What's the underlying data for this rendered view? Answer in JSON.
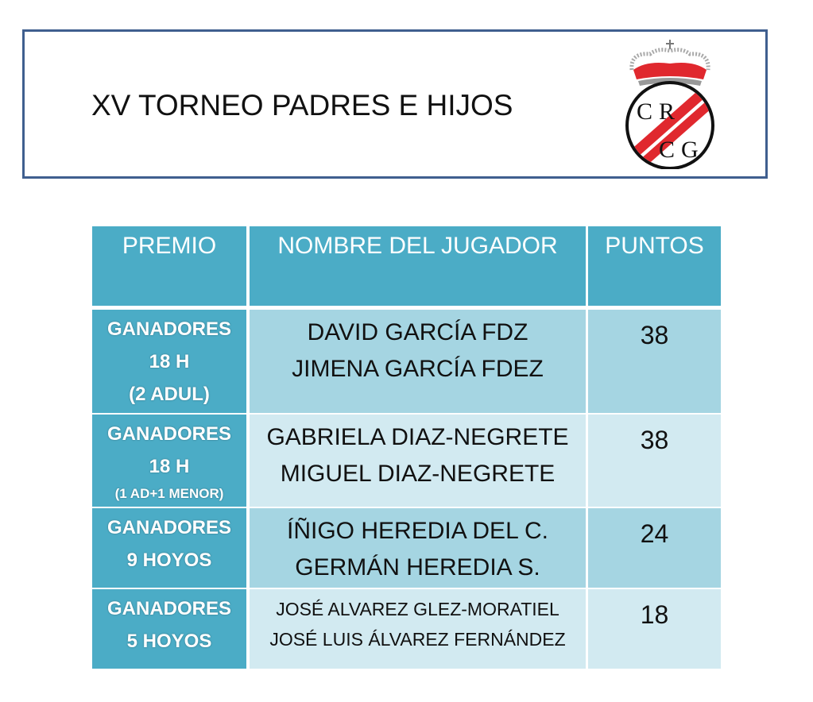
{
  "header": {
    "title": "XV TORNEO PADRES E HIJOS",
    "logo_text": "RCG"
  },
  "colors": {
    "header_cell": "#4bacc6",
    "row_dark": "#a5d5e2",
    "row_light": "#d2eaf1",
    "frame": "#3f5f8f"
  },
  "table": {
    "columns": [
      "PREMIO",
      "NOMBRE DEL JUGADOR",
      "PUNTOS"
    ],
    "rows": [
      {
        "premio": [
          "GANADORES",
          "18 H",
          "(2 ADUL)"
        ],
        "nombres": [
          "DAVID GARCÍA FDZ",
          "JIMENA GARCÍA FDEZ"
        ],
        "puntos": "38"
      },
      {
        "premio": [
          "GANADORES",
          "18 H",
          "(1 AD+1 MENOR)"
        ],
        "nombres": [
          "GABRIELA DIAZ-NEGRETE",
          "MIGUEL DIAZ-NEGRETE"
        ],
        "puntos": "38"
      },
      {
        "premio": [
          "GANADORES",
          "9 HOYOS"
        ],
        "nombres": [
          "ÍÑIGO HEREDIA DEL C.",
          "GERMÁN HEREDIA S."
        ],
        "puntos": "24"
      },
      {
        "premio": [
          "GANADORES",
          "5 HOYOS"
        ],
        "nombres": [
          "JOSÉ ALVAREZ GLEZ-MORATIEL",
          "JOSÉ LUIS ÁLVAREZ FERNÁNDEZ"
        ],
        "puntos": "18"
      }
    ]
  }
}
